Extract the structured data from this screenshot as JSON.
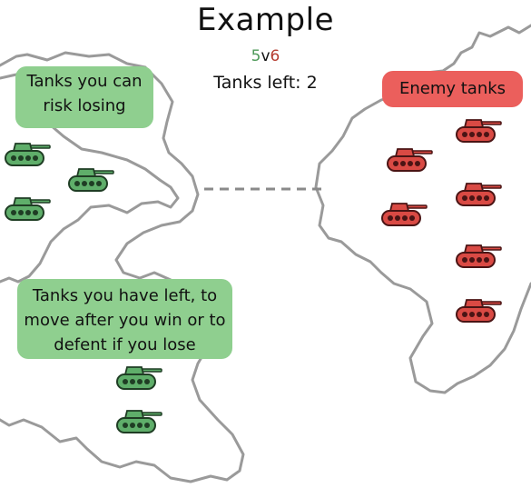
{
  "title": "Example",
  "score": {
    "left": "5",
    "sep": "v",
    "right": "6"
  },
  "tanks_left": "Tanks left: 2",
  "labels": {
    "risk": "Tanks you can risk losing",
    "enemy": "Enemy tanks",
    "remaining": "Tanks you have left, to move after you win or to defent if you lose"
  },
  "colors": {
    "friendly": "#4f9a5a",
    "enemy": "#d0383a",
    "score_left": "#4f9a5a",
    "score_right": "#b53b2f",
    "border": "#9a9a9a"
  },
  "units": {
    "risk_tanks": 3,
    "remaining_tanks": 2,
    "enemy_tanks": 6,
    "icon": "tank-icon"
  }
}
